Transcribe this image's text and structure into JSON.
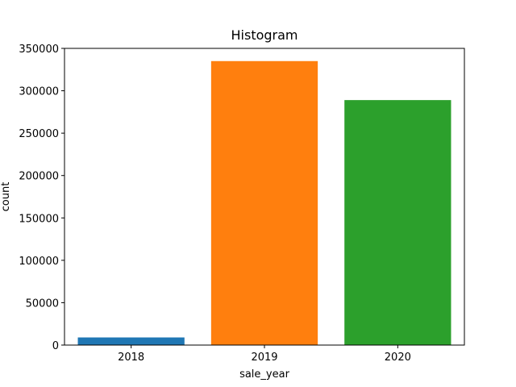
{
  "chart_data": {
    "type": "bar",
    "title": "Histogram",
    "xlabel": "sale_year",
    "ylabel": "count",
    "categories": [
      "2018",
      "2019",
      "2020"
    ],
    "values": [
      9000,
      335000,
      289000
    ],
    "colors": [
      "#1f77b4",
      "#ff7f0e",
      "#2ca02c"
    ],
    "ylim": [
      0,
      350000
    ],
    "yticks": [
      0,
      50000,
      100000,
      150000,
      200000,
      250000,
      300000,
      350000
    ],
    "ytick_labels": [
      "0",
      "50000",
      "100000",
      "150000",
      "200000",
      "250000",
      "300000",
      "350000"
    ],
    "grid": false,
    "legend": "none"
  }
}
